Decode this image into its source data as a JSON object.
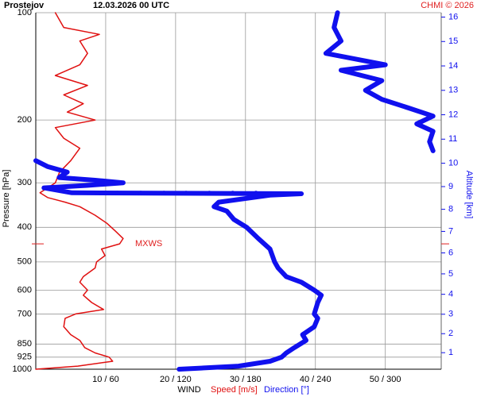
{
  "chart_data": {
    "type": "line",
    "title": "Prostejov",
    "subtitle": "12.03.2026 00 UTC",
    "credit": "CHMI © 2026",
    "ylabel": "Pressure [hPa]",
    "y2label": "Altitude [km]",
    "xlabel": "WIND",
    "log_y": true,
    "grid": true,
    "ylim": [
      1000,
      100
    ],
    "yticks": [
      100,
      200,
      300,
      400,
      500,
      600,
      700,
      850,
      925,
      1000
    ],
    "y2ticks": [
      1,
      2,
      3,
      4,
      5,
      6,
      7,
      8,
      9,
      10,
      11,
      12,
      13,
      14,
      15,
      16
    ],
    "xlim": [
      0,
      58
    ],
    "x2lim": [
      0,
      348
    ],
    "xticks": [
      {
        "value": 10,
        "label": "10 / 60"
      },
      {
        "value": 20,
        "label": "20 / 120"
      },
      {
        "value": 30,
        "label": "30 / 180"
      },
      {
        "value": 40,
        "label": "40 / 240"
      },
      {
        "value": 50,
        "label": "50 / 300"
      }
    ],
    "annotation": {
      "text": "MXWS",
      "pressure": 445,
      "color": "#e02020"
    },
    "series": [
      {
        "name": "Speed [m/s]",
        "color": "#e01010",
        "style": "line",
        "pressure": [
          1000,
          980,
          950,
          925,
          900,
          870,
          830,
          800,
          760,
          720,
          700,
          680,
          650,
          620,
          600,
          570,
          550,
          520,
          500,
          480,
          460,
          445,
          430,
          410,
          390,
          370,
          350,
          340,
          330,
          320,
          310,
          300,
          280,
          260,
          240,
          225,
          210,
          200,
          190,
          180,
          170,
          160,
          150,
          140,
          130,
          120,
          115,
          110,
          100
        ],
        "values": [
          0,
          6,
          11,
          10.5,
          8.5,
          7,
          6.3,
          5,
          4,
          4.2,
          5.7,
          9.7,
          8,
          6.8,
          7.4,
          6.3,
          6.8,
          8.5,
          8.7,
          9.9,
          9.4,
          12,
          12.5,
          11.4,
          10.2,
          8.5,
          6.3,
          4.2,
          1.7,
          0.6,
          1.7,
          2.8,
          3.4,
          5,
          6.3,
          4,
          2.8,
          8.5,
          4.5,
          6.8,
          4,
          7.4,
          2.8,
          6.3,
          7.4,
          6.3,
          9.1,
          4,
          2.8
        ]
      },
      {
        "name": "Direction [°]",
        "color": "#1010ee",
        "style": "line",
        "axis": "x2",
        "pressure": [
          1000,
          980,
          950,
          925,
          900,
          870,
          830,
          800,
          760,
          720,
          700,
          650,
          620,
          600,
          570,
          550,
          520,
          500,
          460,
          430,
          400,
          380,
          360,
          350,
          340,
          325,
          322,
          320,
          310,
          305,
          300,
          295,
          290,
          280,
          270,
          260,
          252,
          244,
          230,
          215,
          205,
          195,
          185,
          175,
          165,
          155,
          145,
          140,
          130,
          120,
          110,
          100
        ],
        "values": [
          123,
          174,
          201,
          211,
          215,
          222,
          232,
          229,
          239,
          242,
          239,
          242,
          245,
          239,
          228,
          215,
          208,
          205,
          201,
          191,
          181,
          170,
          164,
          153,
          157,
          201,
          228,
          31,
          7,
          44,
          75,
          51,
          20,
          27,
          10,
          0,
          null,
          341,
          338,
          341,
          327,
          341,
          320,
          297,
          283,
          297,
          262,
          300,
          249,
          262,
          256,
          259
        ]
      },
      {
        "color": "#1010ee",
        "style": "dots",
        "axis": "x2",
        "pressure": [
          320,
          320,
          320,
          320,
          320,
          320,
          320,
          320,
          320
        ],
        "values": [
          31,
          51,
          70,
          90,
          110,
          129,
          149,
          169,
          189
        ]
      }
    ]
  }
}
